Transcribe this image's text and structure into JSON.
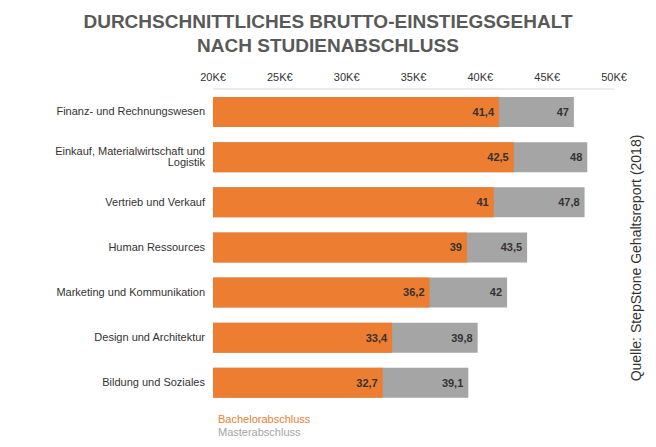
{
  "chart_data": {
    "type": "bar",
    "title": "DURCHSCHNITTLICHES BRUTTO-EINSTIEGSGEHALT\nNACH STUDIENABSCHLUSS",
    "annotations": [
      "Quelle: StepStone Gehaltsreport (2018)"
    ],
    "orientation": "horizontal",
    "stacked": false,
    "data_labels": true,
    "legend": "bottom left",
    "grid": false,
    "categories": [
      "Finanz- und Rechnungswesen",
      "Einkauf, Materialwirtschaft und Logistik",
      "Vertrieb und Verkauf",
      "Human Ressources",
      "Marketing und Kommunikation",
      "Design und Architektur",
      "Bildung und Soziales"
    ],
    "series": [
      {
        "name": "Bachelorabschluss",
        "color": "#ED7D31",
        "values": [
          41.4,
          42.5,
          41,
          39,
          36.2,
          33.4,
          32.7
        ],
        "value_labels": [
          "41,4",
          "42,5",
          "41",
          "39",
          "36,2",
          "33,4",
          "32,7"
        ]
      },
      {
        "name": "Masterabschluss",
        "color": "#A5A5A5",
        "values": [
          47,
          48,
          47.8,
          43.5,
          42,
          39.8,
          39.1
        ],
        "value_labels": [
          "47",
          "48",
          "47,8",
          "43,5",
          "42",
          "39,8",
          "39,1"
        ]
      }
    ],
    "xlim": [
      20,
      50
    ],
    "xticks": [
      {
        "value": 20,
        "label": "20K€"
      },
      {
        "value": 25,
        "label": "25K€"
      },
      {
        "value": 30,
        "label": "30K€"
      },
      {
        "value": 35,
        "label": "35K€"
      },
      {
        "value": 40,
        "label": "40K€"
      },
      {
        "value": 45,
        "label": "45K€"
      },
      {
        "value": 50,
        "label": "50K€"
      }
    ]
  }
}
